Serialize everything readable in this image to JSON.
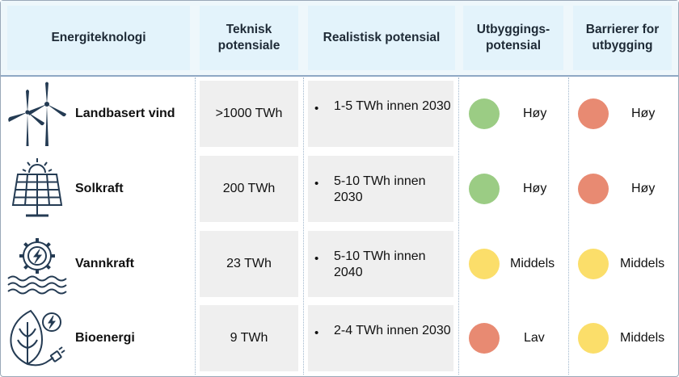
{
  "headers": [
    "Energiteknologi",
    "Teknisk\npotensiale",
    "Realistisk potensial",
    "Utbyggings-\npotensial",
    "Barrierer for\nutbygging"
  ],
  "colors": {
    "green": "#9bcc84",
    "red": "#e88a72",
    "yellow": "#fbde6a",
    "icon": "#243b53",
    "header_fill": "#e3f3fb"
  },
  "rows": [
    {
      "icon": "wind-turbine-icon",
      "name": "Landbasert vind",
      "technical": ">1000 TWh",
      "realistic": "1-5 TWh innen 2030",
      "bullet": "•",
      "development": {
        "label": "Høy",
        "color": "green"
      },
      "barriers": {
        "label": "Høy",
        "color": "red"
      }
    },
    {
      "icon": "solar-panel-icon",
      "name": "Solkraft",
      "technical": "200 TWh",
      "realistic": "5-10 TWh innen 2030",
      "bullet": "•",
      "development": {
        "label": "Høy",
        "color": "green"
      },
      "barriers": {
        "label": "Høy",
        "color": "red"
      }
    },
    {
      "icon": "hydropower-gear-icon",
      "name": "Vannkraft",
      "technical": "23 TWh",
      "realistic": "5-10 TWh innen 2040",
      "bullet": "•",
      "development": {
        "label": "Middels",
        "color": "yellow"
      },
      "barriers": {
        "label": "Middels",
        "color": "yellow"
      }
    },
    {
      "icon": "bioenergy-leaf-icon",
      "name": "Bioenergi",
      "technical": "9 TWh",
      "realistic": "2-4 TWh innen 2030",
      "bullet": "•",
      "development": {
        "label": "Lav",
        "color": "red"
      },
      "barriers": {
        "label": "Middels",
        "color": "yellow"
      }
    }
  ]
}
